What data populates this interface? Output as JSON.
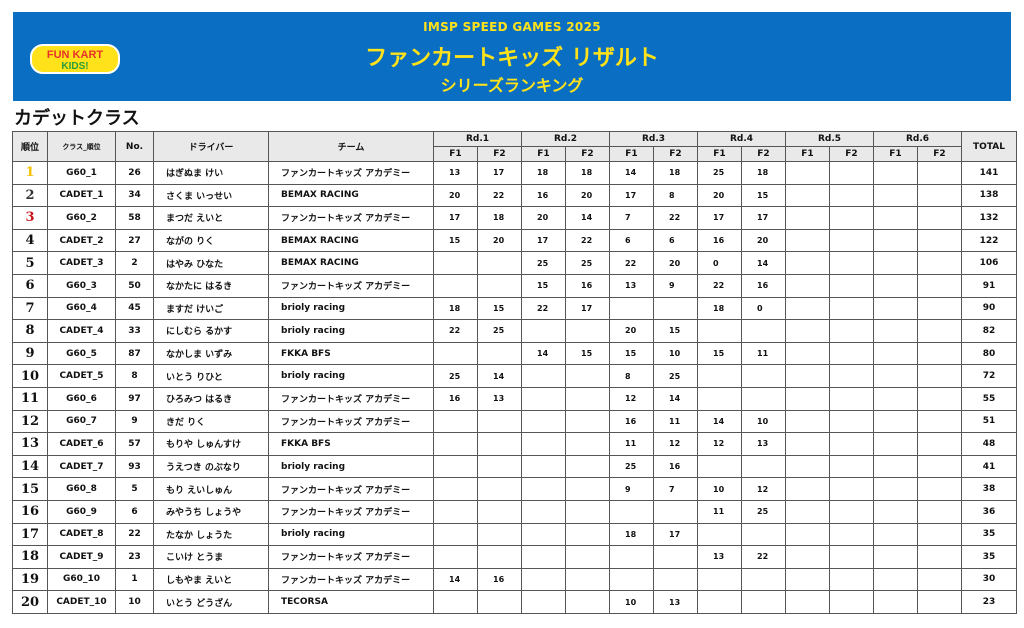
{
  "header": {
    "event": "IMSP SPEED GAMES 2025",
    "title": "ファンカートキッズ リザルト",
    "subtitle": "シリーズランキング",
    "logo_text": "FUN KART KIDS!"
  },
  "section_title": "カデットクラス",
  "columns": {
    "rank": "順位",
    "class_rank": "クラス_順位",
    "no": "No.",
    "driver": "ドライバー",
    "team": "チーム",
    "rounds": [
      "Rd.1",
      "Rd.2",
      "Rd.3",
      "Rd.4",
      "Rd.5",
      "Rd.6"
    ],
    "f1": "F1",
    "f2": "F2",
    "total": "TOTAL"
  },
  "rows": [
    {
      "rank": "1",
      "cls": "G60_1",
      "no": "26",
      "driver": "はぎぬま けい",
      "team": "ファンカートキッズ アカデミー",
      "pts": [
        "13",
        "17",
        "18",
        "18",
        "14",
        "18",
        "25",
        "18",
        "",
        "",
        "",
        ""
      ],
      "total": "141"
    },
    {
      "rank": "2",
      "cls": "CADET_1",
      "no": "34",
      "driver": "さくま いっせい",
      "team": "BEMAX RACING",
      "pts": [
        "20",
        "22",
        "16",
        "20",
        "17",
        "8",
        "20",
        "15",
        "",
        "",
        "",
        ""
      ],
      "total": "138"
    },
    {
      "rank": "3",
      "cls": "G60_2",
      "no": "58",
      "driver": "まつだ えいと",
      "team": "ファンカートキッズ アカデミー",
      "pts": [
        "17",
        "18",
        "20",
        "14",
        "7",
        "22",
        "17",
        "17",
        "",
        "",
        "",
        ""
      ],
      "total": "132"
    },
    {
      "rank": "4",
      "cls": "CADET_2",
      "no": "27",
      "driver": "ながの りく",
      "team": "BEMAX RACING",
      "pts": [
        "15",
        "20",
        "17",
        "22",
        "6",
        "6",
        "16",
        "20",
        "",
        "",
        "",
        ""
      ],
      "total": "122"
    },
    {
      "rank": "5",
      "cls": "CADET_3",
      "no": "2",
      "driver": "はやみ ひなた",
      "team": "BEMAX RACING",
      "pts": [
        "",
        "",
        "25",
        "25",
        "22",
        "20",
        "0",
        "14",
        "",
        "",
        "",
        ""
      ],
      "total": "106"
    },
    {
      "rank": "6",
      "cls": "G60_3",
      "no": "50",
      "driver": "なかたに はるき",
      "team": "ファンカートキッズ アカデミー",
      "pts": [
        "",
        "",
        "15",
        "16",
        "13",
        "9",
        "22",
        "16",
        "",
        "",
        "",
        ""
      ],
      "total": "91"
    },
    {
      "rank": "7",
      "cls": "G60_4",
      "no": "45",
      "driver": "ますだ けいご",
      "team": "brioly racing",
      "pts": [
        "18",
        "15",
        "22",
        "17",
        "",
        "",
        "18",
        "0",
        "",
        "",
        "",
        ""
      ],
      "total": "90"
    },
    {
      "rank": "8",
      "cls": "CADET_4",
      "no": "33",
      "driver": "にしむら るかす",
      "team": "brioly racing",
      "pts": [
        "22",
        "25",
        "",
        "",
        "20",
        "15",
        "",
        "",
        "",
        "",
        "",
        ""
      ],
      "total": "82"
    },
    {
      "rank": "9",
      "cls": "G60_5",
      "no": "87",
      "driver": "なかしま いずみ",
      "team": "FKKA BFS",
      "pts": [
        "",
        "",
        "14",
        "15",
        "15",
        "10",
        "15",
        "11",
        "",
        "",
        "",
        ""
      ],
      "total": "80"
    },
    {
      "rank": "10",
      "cls": "CADET_5",
      "no": "8",
      "driver": "いとう りひと",
      "team": "brioly racing",
      "pts": [
        "25",
        "14",
        "",
        "",
        "8",
        "25",
        "",
        "",
        "",
        "",
        "",
        ""
      ],
      "total": "72"
    },
    {
      "rank": "11",
      "cls": "G60_6",
      "no": "97",
      "driver": "ひろみつ はるき",
      "team": "ファンカートキッズ アカデミー",
      "pts": [
        "16",
        "13",
        "",
        "",
        "12",
        "14",
        "",
        "",
        "",
        "",
        "",
        ""
      ],
      "total": "55"
    },
    {
      "rank": "12",
      "cls": "G60_7",
      "no": "9",
      "driver": "きだ りく",
      "team": "ファンカートキッズ アカデミー",
      "pts": [
        "",
        "",
        "",
        "",
        "16",
        "11",
        "14",
        "10",
        "",
        "",
        "",
        ""
      ],
      "total": "51"
    },
    {
      "rank": "13",
      "cls": "CADET_6",
      "no": "57",
      "driver": "もりや しゅんすけ",
      "team": "FKKA BFS",
      "pts": [
        "",
        "",
        "",
        "",
        "11",
        "12",
        "12",
        "13",
        "",
        "",
        "",
        ""
      ],
      "total": "48"
    },
    {
      "rank": "14",
      "cls": "CADET_7",
      "no": "93",
      "driver": "うえつき のぶなり",
      "team": "brioly racing",
      "pts": [
        "",
        "",
        "",
        "",
        "25",
        "16",
        "",
        "",
        "",
        "",
        "",
        ""
      ],
      "total": "41"
    },
    {
      "rank": "15",
      "cls": "G60_8",
      "no": "5",
      "driver": "もり えいしゅん",
      "team": "ファンカートキッズ アカデミー",
      "pts": [
        "",
        "",
        "",
        "",
        "9",
        "7",
        "10",
        "12",
        "",
        "",
        "",
        ""
      ],
      "total": "38"
    },
    {
      "rank": "16",
      "cls": "G60_9",
      "no": "6",
      "driver": "みやうち しょうや",
      "team": "ファンカートキッズ アカデミー",
      "pts": [
        "",
        "",
        "",
        "",
        "",
        "",
        "11",
        "25",
        "",
        "",
        "",
        ""
      ],
      "total": "36"
    },
    {
      "rank": "17",
      "cls": "CADET_8",
      "no": "22",
      "driver": "たなか しょうた",
      "team": "brioly racing",
      "pts": [
        "",
        "",
        "",
        "",
        "18",
        "17",
        "",
        "",
        "",
        "",
        "",
        ""
      ],
      "total": "35"
    },
    {
      "rank": "18",
      "cls": "CADET_9",
      "no": "23",
      "driver": "こいけ とうま",
      "team": "ファンカートキッズ アカデミー",
      "pts": [
        "",
        "",
        "",
        "",
        "",
        "",
        "13",
        "22",
        "",
        "",
        "",
        ""
      ],
      "total": "35"
    },
    {
      "rank": "19",
      "cls": "G60_10",
      "no": "1",
      "driver": "しもやま えいと",
      "team": "ファンカートキッズ アカデミー",
      "pts": [
        "14",
        "16",
        "",
        "",
        "",
        "",
        "",
        "",
        "",
        "",
        "",
        ""
      ],
      "total": "30"
    },
    {
      "rank": "20",
      "cls": "CADET_10",
      "no": "10",
      "driver": "いとう どうざん",
      "team": "TECORSA",
      "pts": [
        "",
        "",
        "",
        "",
        "10",
        "13",
        "",
        "",
        "",
        "",
        "",
        ""
      ],
      "total": "23"
    }
  ],
  "colors": {
    "banner": "#0a6fc2",
    "banner_text": "#ffe21a",
    "rank1": "#f3c200",
    "rank3": "#c4161c"
  }
}
